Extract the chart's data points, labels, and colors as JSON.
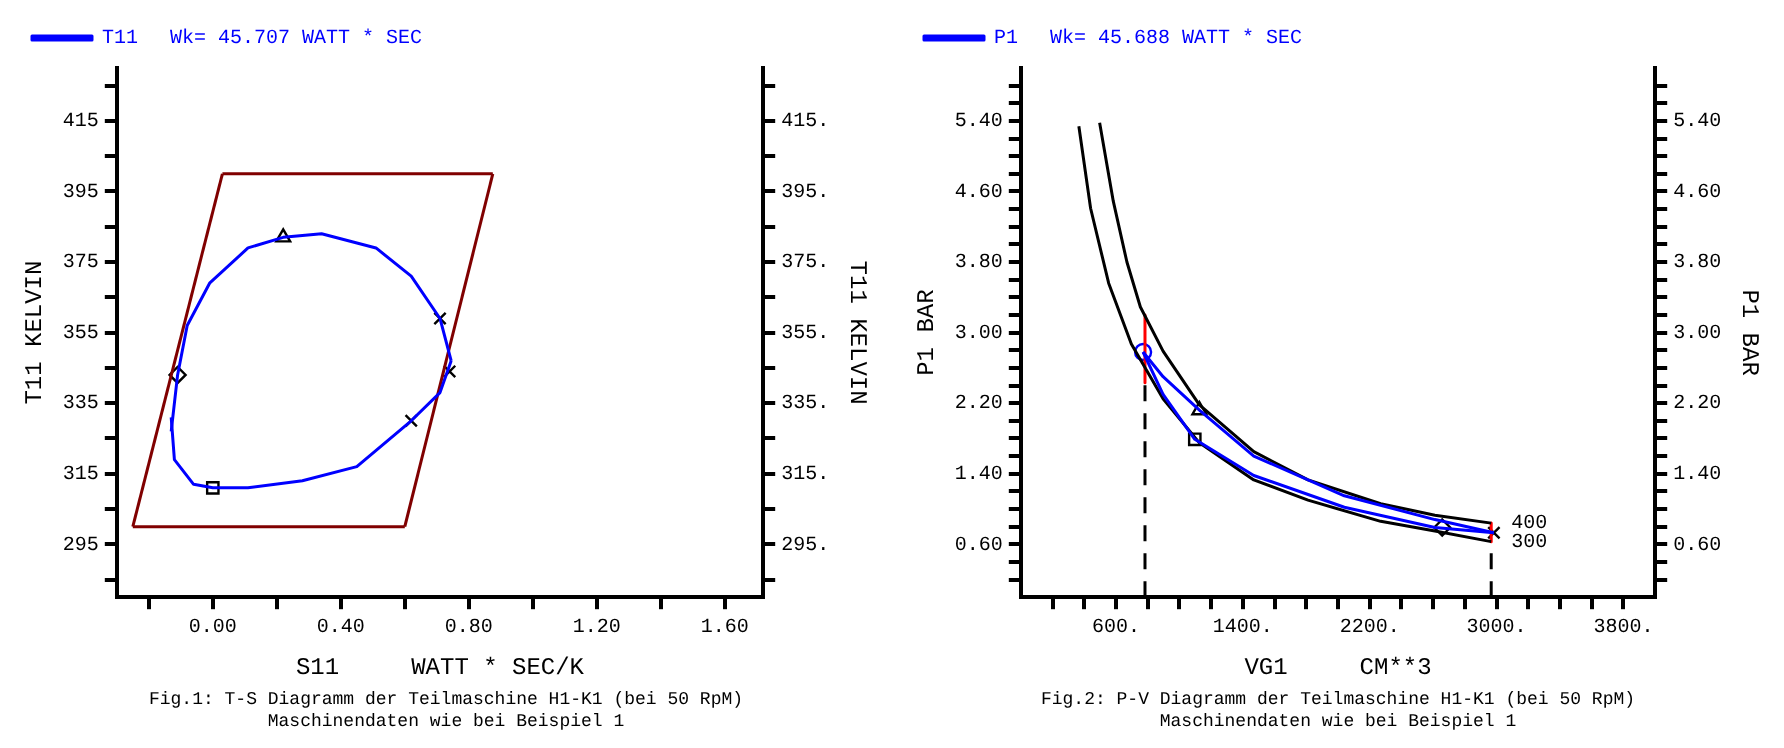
{
  "chart_data": [
    {
      "type": "line",
      "legend": "top",
      "grid": false,
      "xlabel": "S11     WATT * SEC/K",
      "ylabel": "T11 KELVIN",
      "y2label": "T11 KELVIN",
      "annotations": [
        "Wk= 45.707 WATT * SEC",
        "Fig.1: T-S Diagramm der Teilmaschine H1-K1 (bei 50 RpM)",
        "Maschinendaten wie bei Beispiel 1"
      ],
      "xlim": [
        -0.3,
        1.72
      ],
      "ylim": [
        280,
        430
      ],
      "y2lim": [
        280,
        430
      ],
      "xticks": [
        {
          "value": -0.2,
          "label": null
        },
        {
          "value": 0,
          "label": "0.00"
        },
        {
          "value": 0.2,
          "label": null
        },
        {
          "value": 0.4,
          "label": "0.40"
        },
        {
          "value": 0.6,
          "label": null
        },
        {
          "value": 0.8,
          "label": "0.80"
        },
        {
          "value": 1.0,
          "label": null
        },
        {
          "value": 1.2,
          "label": "1.20"
        },
        {
          "value": 1.4,
          "label": null
        },
        {
          "value": 1.6,
          "label": "1.60"
        }
      ],
      "yticks": [
        {
          "value": 285,
          "label": null
        },
        295,
        {
          "value": 305,
          "label": null
        },
        315,
        {
          "value": 325,
          "label": null
        },
        335,
        {
          "value": 345,
          "label": null
        },
        355,
        {
          "value": 365,
          "label": null
        },
        375,
        {
          "value": 385,
          "label": null
        },
        395,
        {
          "value": 405,
          "label": null
        },
        415,
        {
          "value": 425,
          "label": null
        }
      ],
      "y2ticks": [
        {
          "value": 285,
          "label": null
        },
        {
          "value": 295,
          "label": "295."
        },
        {
          "value": 305,
          "label": null
        },
        {
          "value": 315,
          "label": "315."
        },
        {
          "value": 325,
          "label": null
        },
        {
          "value": 335,
          "label": "335."
        },
        {
          "value": 345,
          "label": null
        },
        {
          "value": 355,
          "label": "355."
        },
        {
          "value": 365,
          "label": null
        },
        {
          "value": 375,
          "label": "375."
        },
        {
          "value": 385,
          "label": null
        },
        {
          "value": 395,
          "label": "395."
        },
        {
          "value": 405,
          "label": null
        },
        {
          "value": 415,
          "label": "415."
        },
        {
          "value": 425,
          "label": null
        }
      ],
      "series": [
        {
          "name": "T11",
          "type": "line",
          "color": "#0000ff",
          "x": [
            -0.13,
            -0.11,
            -0.08,
            -0.01,
            0.11,
            0.22,
            0.34,
            0.51,
            0.62,
            0.71,
            0.745
          ],
          "values": [
            327,
            343,
            357,
            369,
            379,
            382,
            383,
            379,
            371,
            359,
            347
          ]
        },
        {
          "type": "line",
          "color": "#0000ff",
          "x": [
            -0.13,
            -0.12,
            -0.06,
            0,
            0.11,
            0.28,
            0.45,
            0.62,
            0.71,
            0.745
          ],
          "values": [
            331,
            319,
            312,
            311,
            311,
            313,
            317,
            330,
            338,
            347
          ]
        },
        {
          "type": "line",
          "color": "#800000",
          "x": [
            -0.25,
            0.6
          ],
          "values": [
            300,
            300
          ]
        },
        {
          "type": "line",
          "color": "#800000",
          "x": [
            0.6,
            0.875
          ],
          "values": [
            300,
            400
          ]
        },
        {
          "type": "line",
          "color": "#800000",
          "x": [
            0.03,
            0.875
          ],
          "values": [
            400,
            400
          ]
        },
        {
          "type": "line",
          "color": "#800000",
          "x": [
            -0.25,
            0.03
          ],
          "values": [
            300,
            400
          ]
        },
        {
          "type": "scatter",
          "marker": "square",
          "color": "#000000",
          "x": [
            0
          ],
          "values": [
            311
          ]
        },
        {
          "type": "scatter",
          "marker": "cross",
          "color": "#000000",
          "x": [
            0.62
          ],
          "values": [
            330
          ]
        },
        {
          "type": "scatter",
          "marker": "cross",
          "color": "#000000",
          "x": [
            0.74
          ],
          "values": [
            344
          ]
        },
        {
          "type": "scatter",
          "marker": "cross",
          "color": "#000000",
          "x": [
            0.71
          ],
          "values": [
            359
          ]
        },
        {
          "type": "scatter",
          "marker": "triangle",
          "color": "#000000",
          "x": [
            0.22
          ],
          "values": [
            382
          ]
        },
        {
          "type": "scatter",
          "marker": "diamond",
          "color": "#000000",
          "x": [
            -0.11
          ],
          "values": [
            343
          ]
        }
      ]
    },
    {
      "type": "line",
      "legend": "top",
      "grid": false,
      "xlabel": "VG1     CM**3",
      "ylabel": "P1 BAR",
      "y2label": "P1 BAR",
      "annotations": [
        "Wk= 45.688 WATT * SEC",
        "Fig.2: P-V Diagramm der Teilmaschine H1-K1 (bei 50 RpM)",
        "Maschinendaten wie bei Beispiel 1",
        {
          "text": "400",
          "x": 2966,
          "y": 0.84
        },
        {
          "text": "300",
          "x": 2966,
          "y": 0.63
        }
      ],
      "xlim": [
        0,
        4000
      ],
      "ylim": [
        0,
        6
      ],
      "y2lim": [
        0,
        6
      ],
      "xticks": [
        {
          "value": 200,
          "label": null
        },
        {
          "value": 400,
          "label": null
        },
        {
          "value": 600,
          "label": "600."
        },
        {
          "value": 800,
          "label": null
        },
        {
          "value": 1000,
          "label": null
        },
        {
          "value": 1200,
          "label": null
        },
        {
          "value": 1400,
          "label": "1400."
        },
        {
          "value": 1600,
          "label": null
        },
        {
          "value": 1800,
          "label": null
        },
        {
          "value": 2000,
          "label": null
        },
        {
          "value": 2200,
          "label": "2200."
        },
        {
          "value": 2400,
          "label": null
        },
        {
          "value": 2600,
          "label": null
        },
        {
          "value": 2800,
          "label": null
        },
        {
          "value": 3000,
          "label": "3000."
        },
        {
          "value": 3200,
          "label": null
        },
        {
          "value": 3400,
          "label": null
        },
        {
          "value": 3600,
          "label": null
        },
        {
          "value": 3800,
          "label": "3800."
        }
      ],
      "yticks": [
        {
          "value": 0.2,
          "label": null
        },
        {
          "value": 0.4,
          "label": null
        },
        {
          "value": 0.6,
          "label": "0.60"
        },
        {
          "value": 0.8,
          "label": null
        },
        {
          "value": 1.0,
          "label": null
        },
        {
          "value": 1.2,
          "label": null
        },
        {
          "value": 1.4,
          "label": "1.40"
        },
        {
          "value": 1.6,
          "label": null
        },
        {
          "value": 1.8,
          "label": null
        },
        {
          "value": 2.0,
          "label": null
        },
        {
          "value": 2.2,
          "label": "2.20"
        },
        {
          "value": 2.4,
          "label": null
        },
        {
          "value": 2.6,
          "label": null
        },
        {
          "value": 2.8,
          "label": null
        },
        {
          "value": 3.0,
          "label": "3.00"
        },
        {
          "value": 3.2,
          "label": null
        },
        {
          "value": 3.4,
          "label": null
        },
        {
          "value": 3.6,
          "label": null
        },
        {
          "value": 3.8,
          "label": "3.80"
        },
        {
          "value": 4.0,
          "label": null
        },
        {
          "value": 4.2,
          "label": null
        },
        {
          "value": 4.4,
          "label": null
        },
        {
          "value": 4.6,
          "label": "4.60"
        },
        {
          "value": 4.8,
          "label": null
        },
        {
          "value": 5.0,
          "label": null
        },
        {
          "value": 5.2,
          "label": null
        },
        {
          "value": 5.4,
          "label": "5.40"
        },
        {
          "value": 5.6,
          "label": null
        },
        {
          "value": 5.8,
          "label": null
        }
      ],
      "y2ticks": [
        {
          "value": 0.2,
          "label": null
        },
        {
          "value": 0.4,
          "label": null
        },
        {
          "value": 0.6,
          "label": "0.60"
        },
        {
          "value": 0.8,
          "label": null
        },
        {
          "value": 1.0,
          "label": null
        },
        {
          "value": 1.2,
          "label": null
        },
        {
          "value": 1.4,
          "label": "1.40"
        },
        {
          "value": 1.6,
          "label": null
        },
        {
          "value": 1.8,
          "label": null
        },
        {
          "value": 2.0,
          "label": null
        },
        {
          "value": 2.2,
          "label": "2.20"
        },
        {
          "value": 2.4,
          "label": null
        },
        {
          "value": 2.6,
          "label": null
        },
        {
          "value": 2.8,
          "label": null
        },
        {
          "value": 3.0,
          "label": "3.00"
        },
        {
          "value": 3.2,
          "label": null
        },
        {
          "value": 3.4,
          "label": null
        },
        {
          "value": 3.6,
          "label": null
        },
        {
          "value": 3.8,
          "label": "3.80"
        },
        {
          "value": 4.0,
          "label": null
        },
        {
          "value": 4.2,
          "label": null
        },
        {
          "value": 4.4,
          "label": null
        },
        {
          "value": 4.6,
          "label": "4.60"
        },
        {
          "value": 4.8,
          "label": null
        },
        {
          "value": 5.0,
          "label": null
        },
        {
          "value": 5.2,
          "label": null
        },
        {
          "value": 5.4,
          "label": "5.40"
        },
        {
          "value": 5.6,
          "label": null
        },
        {
          "value": 5.8,
          "label": null
        }
      ],
      "series": [
        {
          "name": "P1",
          "type": "line",
          "color": "#0000ff",
          "x": [
            771,
            897,
            1126,
            1469,
            2040,
            2611,
            2983
          ],
          "values": [
            2.78,
            2.5,
            2.12,
            1.6,
            1.15,
            0.88,
            0.73
          ]
        },
        {
          "type": "line",
          "color": "#0000ff",
          "x": [
            771,
            897,
            1097,
            1469,
            2040,
            2611,
            2983
          ],
          "values": [
            2.78,
            2.3,
            1.79,
            1.38,
            1.02,
            0.79,
            0.73
          ]
        },
        {
          "type": "line",
          "color": "#000000",
          "x": [
            497,
            583,
            669,
            754,
            897,
            1126,
            1469,
            1811,
            2269,
            2611,
            2966
          ],
          "values": [
            5.38,
            4.49,
            3.8,
            3.29,
            2.79,
            2.18,
            1.65,
            1.33,
            1.06,
            0.93,
            0.84
          ]
        },
        {
          "type": "line",
          "color": "#000000",
          "x": [
            366,
            440,
            554,
            697,
            897,
            1126,
            1469,
            1811,
            2269,
            2611,
            2966
          ],
          "values": [
            5.34,
            4.41,
            3.56,
            2.87,
            2.25,
            1.75,
            1.33,
            1.1,
            0.86,
            0.75,
            0.63
          ]
        },
        {
          "type": "line",
          "color": "#ff0000",
          "x": [
            783,
            783
          ],
          "values": [
            3.2,
            2.43
          ]
        },
        {
          "type": "line",
          "color": "#ff0000",
          "x": [
            2966,
            2966
          ],
          "values": [
            0.84,
            0.63
          ]
        },
        {
          "type": "line",
          "line_style": "dashed",
          "color": "#000000",
          "x": [
            783,
            783
          ],
          "values": [
            0,
            2.43
          ]
        },
        {
          "type": "line",
          "line_style": "dashed",
          "color": "#000000",
          "x": [
            2966,
            2966
          ],
          "values": [
            0,
            0.63
          ]
        },
        {
          "type": "scatter",
          "marker": "circle",
          "color": "#0000ff",
          "x": [
            771
          ],
          "values": [
            2.78
          ]
        },
        {
          "type": "scatter",
          "marker": "triangle",
          "color": "#000000",
          "x": [
            1126
          ],
          "values": [
            2.12
          ]
        },
        {
          "type": "scatter",
          "marker": "square",
          "color": "#000000",
          "x": [
            1097
          ],
          "values": [
            1.79
          ]
        },
        {
          "type": "scatter",
          "marker": "diamond",
          "color": "#000000",
          "x": [
            2657
          ],
          "values": [
            0.79
          ]
        },
        {
          "type": "scatter",
          "marker": "cross",
          "color": "#000000",
          "x": [
            2983
          ],
          "values": [
            0.73
          ]
        }
      ]
    }
  ]
}
